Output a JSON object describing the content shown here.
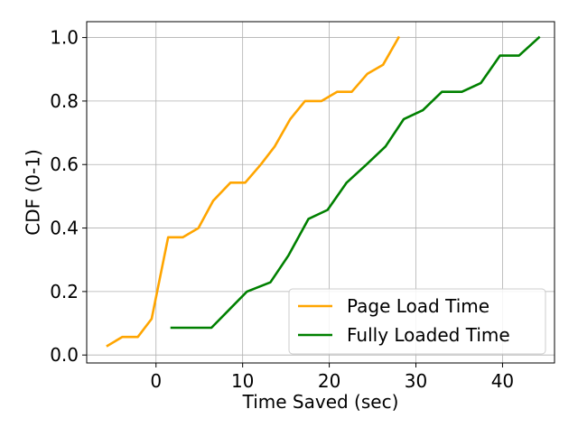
{
  "chart_data": {
    "type": "line",
    "title": "",
    "xlabel": "Time Saved (sec)",
    "ylabel": "CDF (0-1)",
    "xlim": [
      -8,
      46
    ],
    "ylim": [
      -0.025,
      1.05
    ],
    "xticks": [
      0,
      10,
      20,
      30,
      40
    ],
    "yticks": [
      0.0,
      0.2,
      0.4,
      0.6,
      0.8,
      1.0
    ],
    "xtick_labels": [
      "0",
      "10",
      "20",
      "30",
      "40"
    ],
    "ytick_labels": [
      "0.0",
      "0.2",
      "0.4",
      "0.6",
      "0.8",
      "1.0"
    ],
    "grid": true,
    "legend_position": "bottom-right",
    "series": [
      {
        "name": "Page Load Time",
        "color": "#ffa500",
        "points": [
          [
            -5.6,
            0.029
          ],
          [
            -3.9,
            0.057
          ],
          [
            -2.1,
            0.057
          ],
          [
            -0.5,
            0.114
          ],
          [
            1.4,
            0.371
          ],
          [
            3.1,
            0.371
          ],
          [
            4.9,
            0.4
          ],
          [
            6.6,
            0.486
          ],
          [
            8.6,
            0.543
          ],
          [
            10.3,
            0.543
          ],
          [
            12.1,
            0.6
          ],
          [
            13.7,
            0.657
          ],
          [
            15.5,
            0.743
          ],
          [
            17.2,
            0.8
          ],
          [
            19.1,
            0.8
          ],
          [
            20.9,
            0.829
          ],
          [
            22.6,
            0.829
          ],
          [
            24.4,
            0.886
          ],
          [
            26.2,
            0.914
          ],
          [
            28.0,
            1.0
          ]
        ]
      },
      {
        "name": "Fully Loaded Time",
        "color": "#008000",
        "points": [
          [
            1.8,
            0.086
          ],
          [
            3.6,
            0.086
          ],
          [
            6.4,
            0.086
          ],
          [
            10.5,
            0.2
          ],
          [
            13.2,
            0.229
          ],
          [
            15.3,
            0.314
          ],
          [
            17.6,
            0.429
          ],
          [
            19.8,
            0.457
          ],
          [
            22.0,
            0.543
          ],
          [
            24.3,
            0.6
          ],
          [
            26.5,
            0.657
          ],
          [
            28.6,
            0.743
          ],
          [
            30.8,
            0.771
          ],
          [
            33.0,
            0.829
          ],
          [
            35.3,
            0.829
          ],
          [
            37.5,
            0.857
          ],
          [
            39.7,
            0.943
          ],
          [
            41.9,
            0.943
          ],
          [
            44.2,
            1.0
          ]
        ]
      }
    ]
  }
}
